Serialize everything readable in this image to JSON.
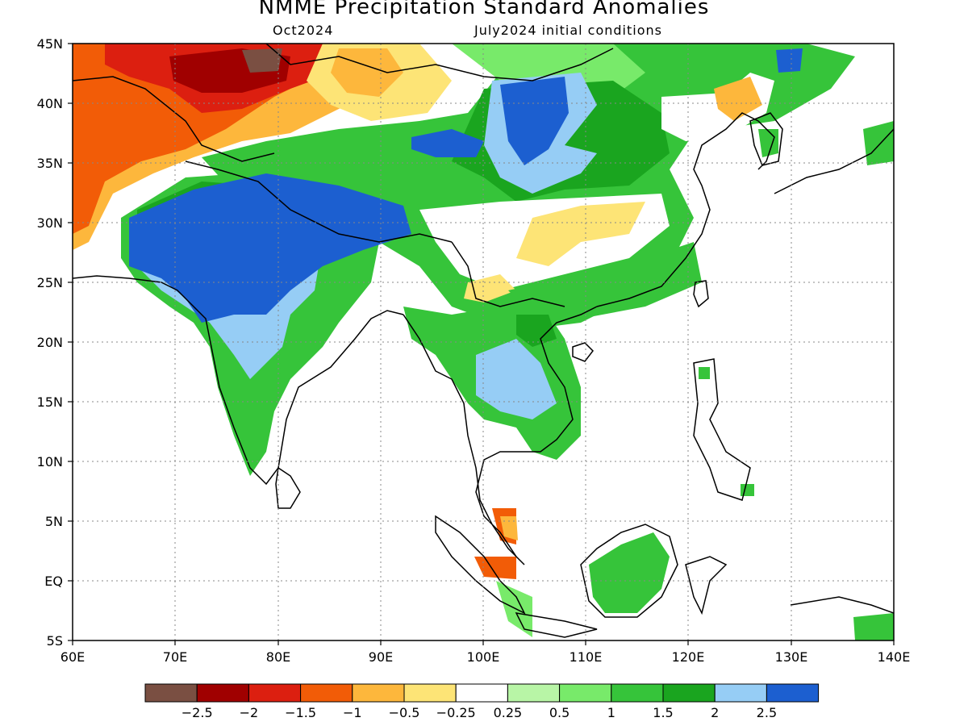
{
  "title": "NMME Precipitation Standard Anomalies",
  "subtitle_left": "Oct2024",
  "subtitle_right": "July2024 initial conditions",
  "lat_labels": [
    "45N",
    "40N",
    "35N",
    "30N",
    "25N",
    "20N",
    "15N",
    "10N",
    "5N",
    "EQ",
    "5S"
  ],
  "lon_labels": [
    "60E",
    "70E",
    "80E",
    "90E",
    "100E",
    "110E",
    "120E",
    "130E",
    "140E"
  ],
  "colorbar": {
    "colors": [
      "#7a4f42",
      "#a00000",
      "#dc1f10",
      "#f25c07",
      "#fdb73c",
      "#fde476",
      "#ffffff",
      "#b8f5a6",
      "#78ea6a",
      "#36c43a",
      "#1aa51f",
      "#96cdf5",
      "#1c5fd0"
    ],
    "labels": [
      "−2.5",
      "−2",
      "−1.5",
      "−1",
      "−0.5",
      "−0.25",
      "0.25",
      "0.5",
      "1",
      "1.5",
      "2",
      "2.5"
    ]
  }
}
